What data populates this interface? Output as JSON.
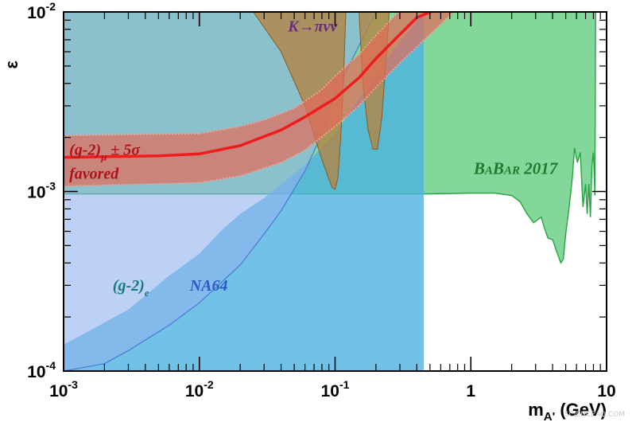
{
  "chart_data": {
    "type": "area",
    "x_scale": "log",
    "y_scale": "log",
    "xlim": [
      0.001,
      10
    ],
    "ylim": [
      0.0001,
      0.01
    ],
    "xlabel_main": "m",
    "xlabel_sub": "A'",
    "xlabel_unit": " (GeV)",
    "ylabel": "ε",
    "x_ticks": [
      {
        "value": 0.001,
        "base": "10",
        "exp": "-3"
      },
      {
        "value": 0.01,
        "base": "10",
        "exp": "-2"
      },
      {
        "value": 0.1,
        "base": "10",
        "exp": "-1"
      },
      {
        "value": 1,
        "base": "1",
        "exp": ""
      },
      {
        "value": 10,
        "base": "10",
        "exp": ""
      }
    ],
    "y_ticks": [
      {
        "value": 0.0001,
        "base": "10",
        "exp": "-4"
      },
      {
        "value": 0.001,
        "base": "10",
        "exp": "-3"
      },
      {
        "value": 0.01,
        "base": "10",
        "exp": "-2"
      }
    ],
    "series": [
      {
        "name": "BaBar 2017",
        "color": "#6fd08a",
        "boundary": [
          [
            0.001,
            0.00097
          ],
          [
            0.05,
            0.00097
          ],
          [
            0.5,
            0.00097
          ],
          [
            1.0,
            0.00098
          ],
          [
            1.5,
            0.00098
          ],
          [
            2.0,
            0.00095
          ],
          [
            2.3,
            0.00088
          ],
          [
            2.6,
            0.00075
          ],
          [
            2.9,
            0.00067
          ],
          [
            3.3,
            0.00072
          ],
          [
            3.5,
            0.00062
          ],
          [
            3.7,
            0.00055
          ],
          [
            4.0,
            0.00054
          ],
          [
            4.3,
            0.00046
          ],
          [
            4.6,
            0.0004
          ],
          [
            4.8,
            0.00042
          ],
          [
            5.0,
            0.00058
          ],
          [
            5.3,
            0.00082
          ],
          [
            5.6,
            0.0012
          ],
          [
            5.8,
            0.00175
          ],
          [
            6.1,
            0.00145
          ],
          [
            6.4,
            0.00165
          ],
          [
            6.7,
            0.00082
          ],
          [
            7.0,
            0.0011
          ],
          [
            7.2,
            0.00075
          ],
          [
            7.4,
            0.0011
          ],
          [
            7.6,
            0.00072
          ],
          [
            7.8,
            0.0014
          ],
          [
            8.0,
            0.00165
          ],
          [
            8.2,
            0.00095
          ],
          [
            8.3,
            0.01
          ]
        ]
      },
      {
        "name": "(g-2)e",
        "color": "#4db3e0",
        "boundary": [
          [
            0.001,
            0.00014
          ],
          [
            0.003,
            0.00022
          ],
          [
            0.006,
            0.00034
          ],
          [
            0.01,
            0.00045
          ],
          [
            0.015,
            0.00062
          ],
          [
            0.02,
            0.00075
          ],
          [
            0.03,
            0.00092
          ],
          [
            0.04,
            0.0011
          ],
          [
            0.06,
            0.0014
          ],
          [
            0.1,
            0.0021
          ],
          [
            0.2,
            0.0045
          ],
          [
            0.3,
            0.0068
          ],
          [
            0.45,
            0.01
          ]
        ]
      },
      {
        "name": "NA64",
        "color": "#8fb3ef",
        "boundary": [
          [
            0.001,
            0.0001
          ],
          [
            0.002,
            0.00011
          ],
          [
            0.003,
            0.00013
          ],
          [
            0.006,
            0.00018
          ],
          [
            0.01,
            0.00024
          ],
          [
            0.02,
            0.00039
          ],
          [
            0.03,
            0.00058
          ],
          [
            0.04,
            0.00078
          ],
          [
            0.06,
            0.0013
          ],
          [
            0.08,
            0.0021
          ],
          [
            0.1,
            0.0035
          ],
          [
            0.15,
            0.0065
          ],
          [
            0.2,
            0.01
          ]
        ]
      },
      {
        "name": "K→πνν",
        "color": "#b48442",
        "boundary": [
          [
            0.025,
            0.01
          ],
          [
            0.04,
            0.006
          ],
          [
            0.06,
            0.003
          ],
          [
            0.08,
            0.0015
          ],
          [
            0.095,
            0.00105
          ],
          [
            0.1,
            0.00103
          ],
          [
            0.105,
            0.0012
          ],
          [
            0.11,
            0.002
          ],
          [
            0.115,
            0.004
          ],
          [
            0.12,
            0.01
          ],
          [
            0.15,
            0.01
          ],
          [
            0.16,
            0.004
          ],
          [
            0.175,
            0.0022
          ],
          [
            0.19,
            0.00172
          ],
          [
            0.205,
            0.00172
          ],
          [
            0.22,
            0.0025
          ],
          [
            0.24,
            0.006
          ],
          [
            0.25,
            0.01
          ]
        ]
      },
      {
        "name": "(g-2)μ ± 5σ favored",
        "color": "#e46a5a",
        "upper": [
          [
            0.001,
            0.00205
          ],
          [
            0.01,
            0.0021
          ],
          [
            0.02,
            0.0023
          ],
          [
            0.03,
            0.0025
          ],
          [
            0.05,
            0.0029
          ],
          [
            0.08,
            0.0037
          ],
          [
            0.1,
            0.0044
          ],
          [
            0.15,
            0.0058
          ],
          [
            0.2,
            0.0074
          ],
          [
            0.3,
            0.0102
          ]
        ],
        "lower": [
          [
            0.001,
            0.00107
          ],
          [
            0.01,
            0.00112
          ],
          [
            0.02,
            0.00122
          ],
          [
            0.04,
            0.00145
          ],
          [
            0.06,
            0.0017
          ],
          [
            0.1,
            0.0023
          ],
          [
            0.15,
            0.003
          ],
          [
            0.2,
            0.0038
          ],
          [
            0.3,
            0.0052
          ],
          [
            0.5,
            0.0075
          ],
          [
            0.8,
            0.0105
          ]
        ],
        "central": [
          [
            0.001,
            0.00155
          ],
          [
            0.005,
            0.00158
          ],
          [
            0.01,
            0.00162
          ],
          [
            0.02,
            0.0018
          ],
          [
            0.04,
            0.0022
          ],
          [
            0.06,
            0.0026
          ],
          [
            0.1,
            0.0033
          ],
          [
            0.15,
            0.0043
          ],
          [
            0.2,
            0.0055
          ],
          [
            0.3,
            0.0075
          ],
          [
            0.4,
            0.0093
          ],
          [
            0.55,
            0.0103
          ]
        ],
        "central_color": "#ee1c1c"
      }
    ],
    "annotations": [
      {
        "name": "kpinunu-label",
        "text": "K→πνν",
        "color": "#6b2a83",
        "x": 0.045,
        "y": 0.0078
      },
      {
        "name": "gm2mu-label",
        "text": "(g-2)",
        "sub": "μ",
        "tail": " ± 5σ",
        "color": "#b0121c",
        "x": 0.0011,
        "y": 0.0016
      },
      {
        "name": "favored-label",
        "text": "favored",
        "color": "#b0121c",
        "x": 0.0011,
        "y": 0.00118
      },
      {
        "name": "babar-label",
        "text": "BaBar 2017",
        "color": "#1f7a2c",
        "x": 1.05,
        "y": 0.00125
      },
      {
        "name": "gm2e-label",
        "text": "(g-2)",
        "sub": "e",
        "color": "#147a80",
        "x": 0.0023,
        "y": 0.00028
      },
      {
        "name": "na64-label",
        "text": "NA64",
        "color": "#2f56c9",
        "x": 0.0085,
        "y": 0.00028
      }
    ],
    "grid": false,
    "legend": "none"
  },
  "watermark": "SCIENCEAQ.COM"
}
